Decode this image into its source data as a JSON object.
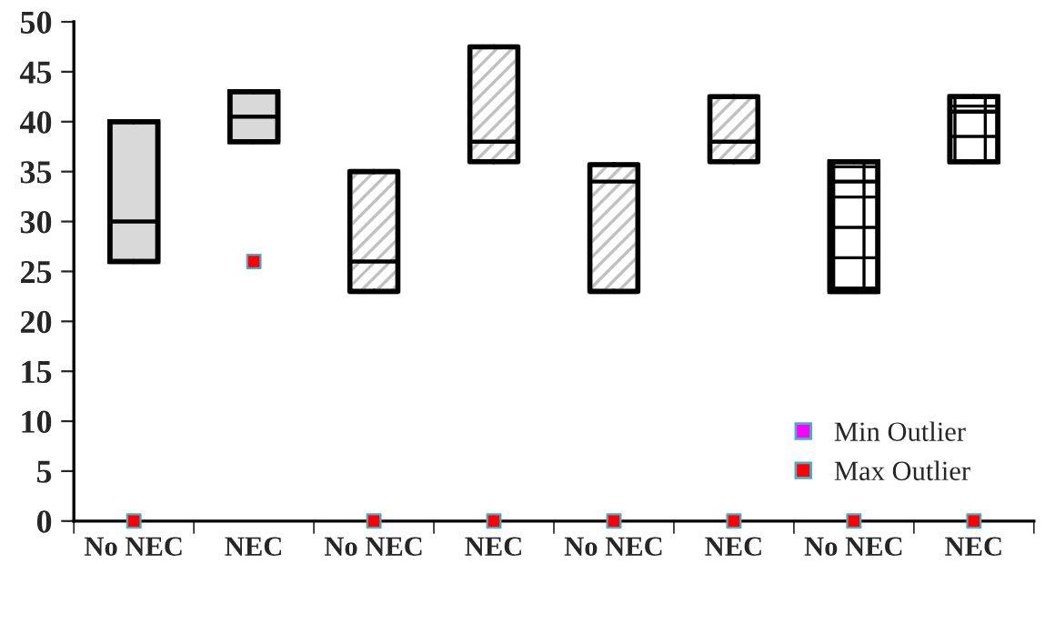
{
  "chart_data": {
    "type": "box",
    "categories": [
      "No NEC",
      "NEC",
      "No NEC",
      "NEC",
      "No NEC",
      "NEC",
      "No NEC",
      "NEC"
    ],
    "colors": [
      "#d9d9d9",
      "#d9d9d9",
      "#c0c0c0",
      "#c0c0c0",
      "#c0c0c0",
      "#c0c0c0",
      "#000000",
      "#000000"
    ],
    "boxes": [
      {
        "low": 26,
        "q1": 26,
        "median": 30,
        "q3": 40,
        "high": 40
      },
      {
        "low": 38,
        "q1": 38,
        "median": 40.5,
        "q3": 43,
        "high": 43
      },
      {
        "low": 23,
        "q1": 23,
        "median": 26,
        "q3": 35,
        "high": 35
      },
      {
        "low": 36,
        "q1": 36,
        "median": 38,
        "q3": 47.5,
        "high": 47.5
      },
      {
        "low": 23,
        "q1": 23,
        "median": 34,
        "q3": 35.7,
        "high": 35.7
      },
      {
        "low": 36,
        "q1": 36,
        "median": 38,
        "q3": 42.5,
        "high": 42.5
      },
      {
        "low": 23,
        "q1": 23,
        "median": 34,
        "q3": 36,
        "high": 36
      },
      {
        "low": 36,
        "q1": 36,
        "median": 41,
        "q3": 42.5,
        "high": 42.5
      }
    ],
    "series": [
      {
        "type": "scatter",
        "name": "Min Outlier",
        "color": "#ff00ff",
        "values": [
          null,
          null,
          null,
          null,
          null,
          null,
          null,
          null
        ]
      },
      {
        "type": "scatter",
        "name": "Max Outlier",
        "color": "#ff0000",
        "values": [
          0,
          26,
          0,
          0,
          0,
          0,
          0,
          0
        ]
      }
    ],
    "ylim": [
      0,
      50
    ],
    "yticks": [
      0,
      5,
      10,
      15,
      20,
      25,
      30,
      35,
      40,
      45,
      50
    ],
    "legend": "bottom right",
    "marker": "square",
    "grid": false
  }
}
